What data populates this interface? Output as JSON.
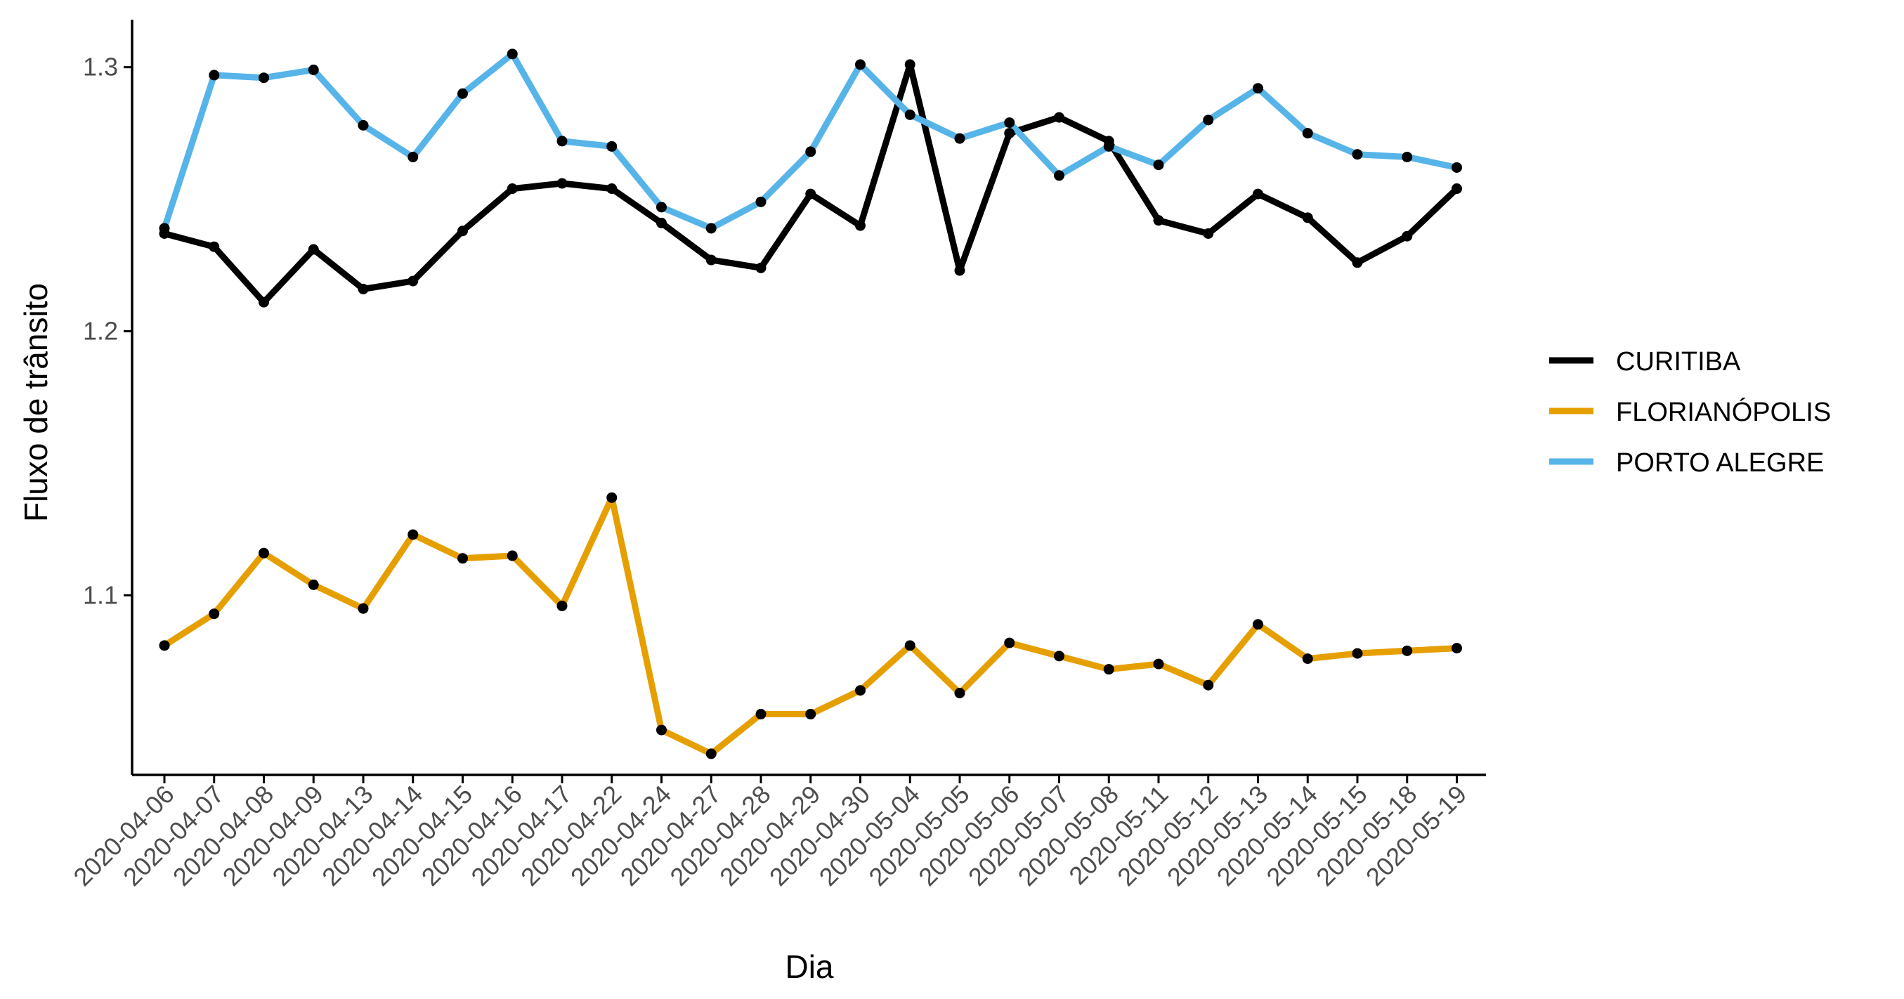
{
  "chart_data": {
    "type": "line",
    "title": "",
    "xlabel": "Dia",
    "ylabel": "Fluxo de trânsito",
    "ylim": [
      1.032,
      1.318
    ],
    "yticks": [
      1.1,
      1.2,
      1.3
    ],
    "ytick_labels": [
      "1.1",
      "1.2",
      "1.3"
    ],
    "grid": false,
    "legend_position": "right",
    "categories": [
      "2020-04-06",
      "2020-04-07",
      "2020-04-08",
      "2020-04-09",
      "2020-04-13",
      "2020-04-14",
      "2020-04-15",
      "2020-04-16",
      "2020-04-17",
      "2020-04-22",
      "2020-04-24",
      "2020-04-27",
      "2020-04-28",
      "2020-04-29",
      "2020-04-30",
      "2020-05-04",
      "2020-05-05",
      "2020-05-06",
      "2020-05-07",
      "2020-05-08",
      "2020-05-11",
      "2020-05-12",
      "2020-05-13",
      "2020-05-14",
      "2020-05-15",
      "2020-05-18",
      "2020-05-19"
    ],
    "series": [
      {
        "name": "CURITIBA",
        "color": "#000000",
        "values": [
          1.237,
          1.232,
          1.211,
          1.231,
          1.216,
          1.219,
          1.238,
          1.254,
          1.256,
          1.254,
          1.241,
          1.227,
          1.224,
          1.252,
          1.24,
          1.301,
          1.223,
          1.275,
          1.281,
          1.272,
          1.242,
          1.237,
          1.252,
          1.243,
          1.226,
          1.236,
          1.254
        ]
      },
      {
        "name": "FLORIANÓPOLIS",
        "color": "#E69F00",
        "values": [
          1.081,
          1.093,
          1.116,
          1.104,
          1.095,
          1.123,
          1.114,
          1.115,
          1.096,
          1.137,
          1.049,
          1.04,
          1.055,
          1.055,
          1.064,
          1.081,
          1.063,
          1.082,
          1.077,
          1.072,
          1.074,
          1.066,
          1.089,
          1.076,
          1.078,
          1.079,
          1.08
        ]
      },
      {
        "name": "PORTO ALEGRE",
        "color": "#56B4E9",
        "values": [
          1.239,
          1.297,
          1.296,
          1.299,
          1.278,
          1.266,
          1.29,
          1.305,
          1.272,
          1.27,
          1.247,
          1.239,
          1.249,
          1.268,
          1.301,
          1.282,
          1.273,
          1.279,
          1.259,
          1.27,
          1.263,
          1.28,
          1.292,
          1.275,
          1.267,
          1.266,
          1.262
        ]
      }
    ]
  }
}
